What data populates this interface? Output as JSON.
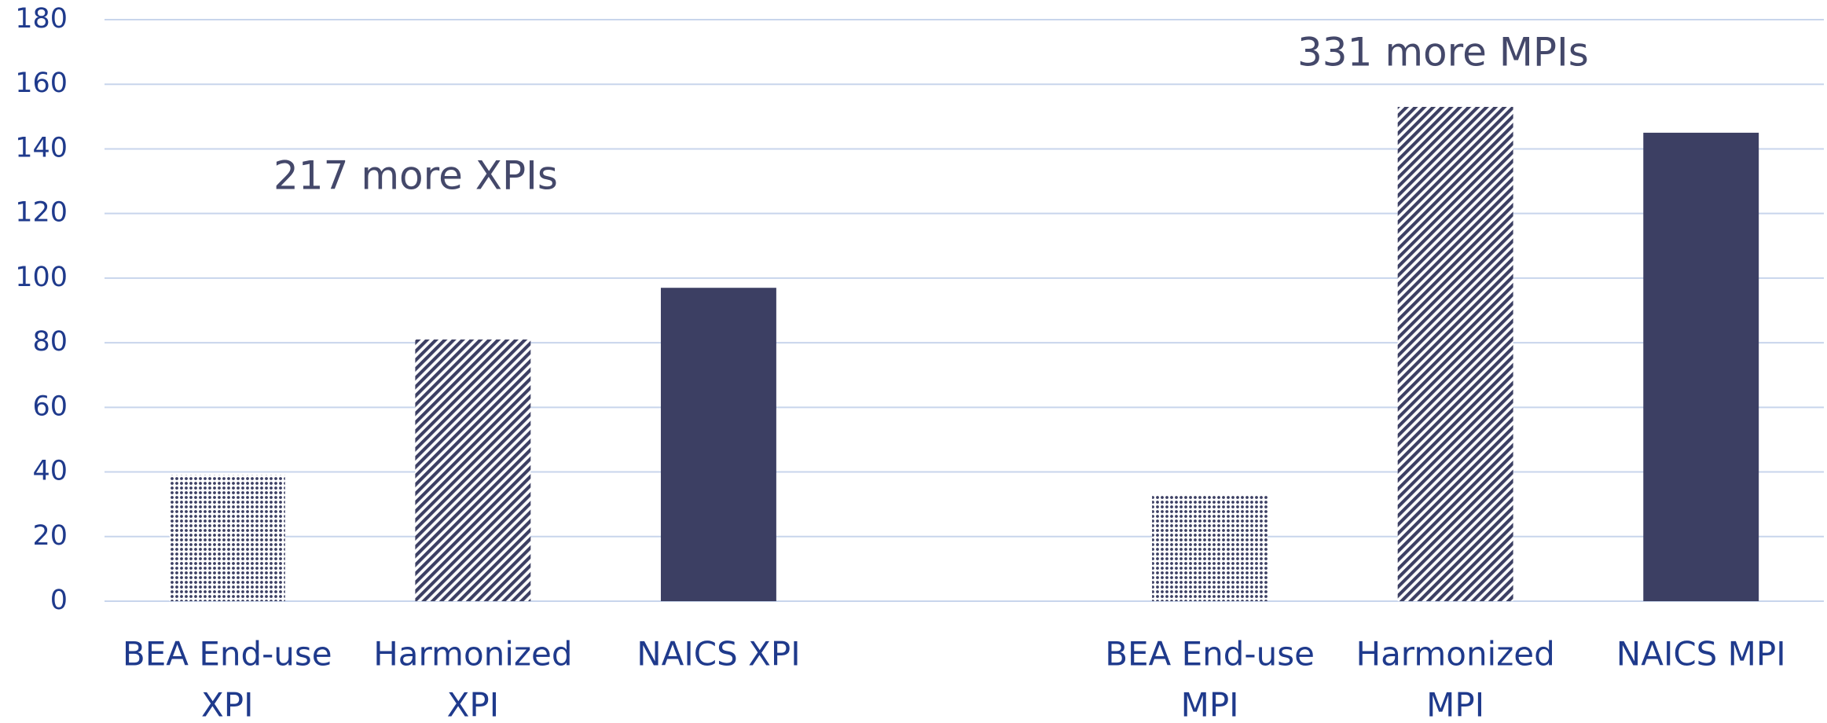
{
  "chart_data": {
    "type": "bar",
    "categories": [
      [
        "BEA End-use",
        "XPI"
      ],
      [
        "Harmonized",
        "XPI"
      ],
      [
        "NAICS XPI"
      ],
      null,
      [
        "BEA End-use",
        "MPI"
      ],
      [
        "Harmonized",
        "MPI"
      ],
      [
        "NAICS MPI"
      ]
    ],
    "values": [
      39,
      81,
      97,
      null,
      33,
      153,
      145
    ],
    "patterns": [
      "dots",
      "hatch",
      "solid",
      null,
      "dots",
      "hatch",
      "solid"
    ],
    "color": "#3c3f63",
    "ylim": [
      0,
      180
    ],
    "yticks": [
      0,
      20,
      40,
      60,
      80,
      100,
      120,
      140,
      160,
      180
    ],
    "grid": true,
    "annotations": [
      "217 more XPIs",
      "331 more MPIs"
    ]
  }
}
